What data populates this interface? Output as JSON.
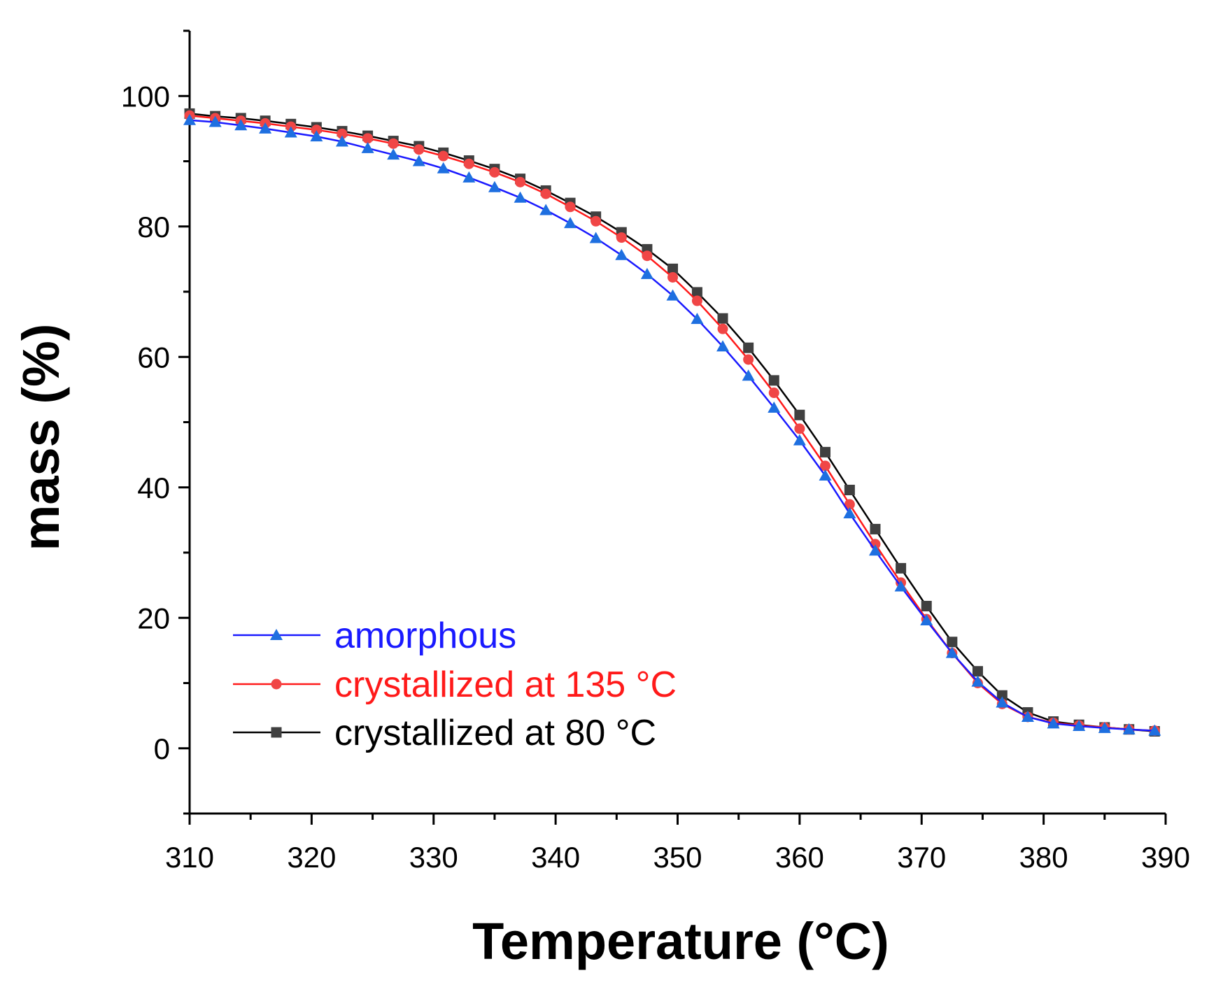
{
  "chart_data": {
    "type": "line",
    "title": "",
    "xlabel": "Temperature (°C)",
    "ylabel": "mass (%)",
    "xlim": [
      310,
      390
    ],
    "ylim": [
      -10,
      110
    ],
    "xticks": [
      310,
      320,
      330,
      340,
      350,
      360,
      370,
      380,
      390
    ],
    "yticks": [
      0,
      20,
      40,
      60,
      80,
      100
    ],
    "legend_position": "bottom-left",
    "series": [
      {
        "name": "amorphous",
        "color": "#1a1aff",
        "marker": "triangle",
        "marker_color": "#1e6fe0",
        "x": [
          310.0,
          312.1,
          314.2,
          316.2,
          318.3,
          320.4,
          322.5,
          324.6,
          326.7,
          328.8,
          330.8,
          332.9,
          335.0,
          337.1,
          339.2,
          341.2,
          343.3,
          345.4,
          347.5,
          349.6,
          351.6,
          353.7,
          355.8,
          357.9,
          360.0,
          362.1,
          364.1,
          366.2,
          368.3,
          370.4,
          372.5,
          374.6,
          376.6,
          378.7,
          380.8,
          382.9,
          385.0,
          387.0,
          389.1
        ],
        "y": [
          96.3,
          96.0,
          95.5,
          95.0,
          94.4,
          93.8,
          93.0,
          92.0,
          91.0,
          90.0,
          88.9,
          87.5,
          86.0,
          84.4,
          82.5,
          80.5,
          78.2,
          75.6,
          72.7,
          69.4,
          65.8,
          61.6,
          57.1,
          52.2,
          47.2,
          41.8,
          36.0,
          30.3,
          24.8,
          19.6,
          14.6,
          10.2,
          7.0,
          4.8,
          3.8,
          3.4,
          3.1,
          2.9,
          2.7
        ]
      },
      {
        "name": "crystallized at 135 °C",
        "color": "#ff1a1a",
        "marker": "circle",
        "marker_color": "#f04646",
        "x": [
          310.0,
          312.1,
          314.2,
          316.2,
          318.3,
          320.4,
          322.5,
          324.6,
          326.7,
          328.8,
          330.8,
          332.9,
          335.0,
          337.1,
          339.2,
          341.2,
          343.3,
          345.4,
          347.5,
          349.6,
          351.6,
          353.7,
          355.8,
          357.9,
          360.0,
          362.1,
          364.1,
          366.2,
          368.3,
          370.4,
          372.5,
          374.6,
          376.6,
          378.7,
          380.8,
          382.9,
          385.0,
          387.0,
          389.1
        ],
        "y": [
          97.0,
          96.6,
          96.2,
          95.8,
          95.3,
          94.8,
          94.2,
          93.5,
          92.7,
          91.8,
          90.8,
          89.6,
          88.3,
          86.8,
          85.0,
          83.0,
          80.8,
          78.3,
          75.5,
          72.2,
          68.6,
          64.3,
          59.6,
          54.5,
          49.0,
          43.3,
          37.4,
          31.3,
          25.4,
          19.8,
          14.6,
          10.0,
          6.8,
          4.8,
          3.9,
          3.5,
          3.2,
          2.9,
          2.7
        ]
      },
      {
        "name": "crystallized at 80 °C",
        "color": "#000000",
        "marker": "square",
        "marker_color": "#404040",
        "x": [
          310.0,
          312.1,
          314.2,
          316.2,
          318.3,
          320.4,
          322.5,
          324.6,
          326.7,
          328.8,
          330.8,
          332.9,
          335.0,
          337.1,
          339.2,
          341.2,
          343.3,
          345.4,
          347.5,
          349.6,
          351.6,
          353.7,
          355.8,
          357.9,
          360.0,
          362.1,
          364.1,
          366.2,
          368.3,
          370.4,
          372.5,
          374.6,
          376.6,
          378.7,
          380.8,
          382.9,
          385.0,
          387.0,
          389.1
        ],
        "y": [
          97.3,
          96.9,
          96.6,
          96.2,
          95.7,
          95.2,
          94.6,
          93.9,
          93.1,
          92.3,
          91.3,
          90.1,
          88.8,
          87.3,
          85.5,
          83.6,
          81.5,
          79.1,
          76.5,
          73.5,
          69.9,
          65.9,
          61.4,
          56.4,
          51.1,
          45.4,
          39.6,
          33.6,
          27.6,
          21.8,
          16.3,
          11.8,
          8.1,
          5.5,
          4.1,
          3.6,
          3.2,
          2.9,
          2.6
        ]
      }
    ]
  }
}
